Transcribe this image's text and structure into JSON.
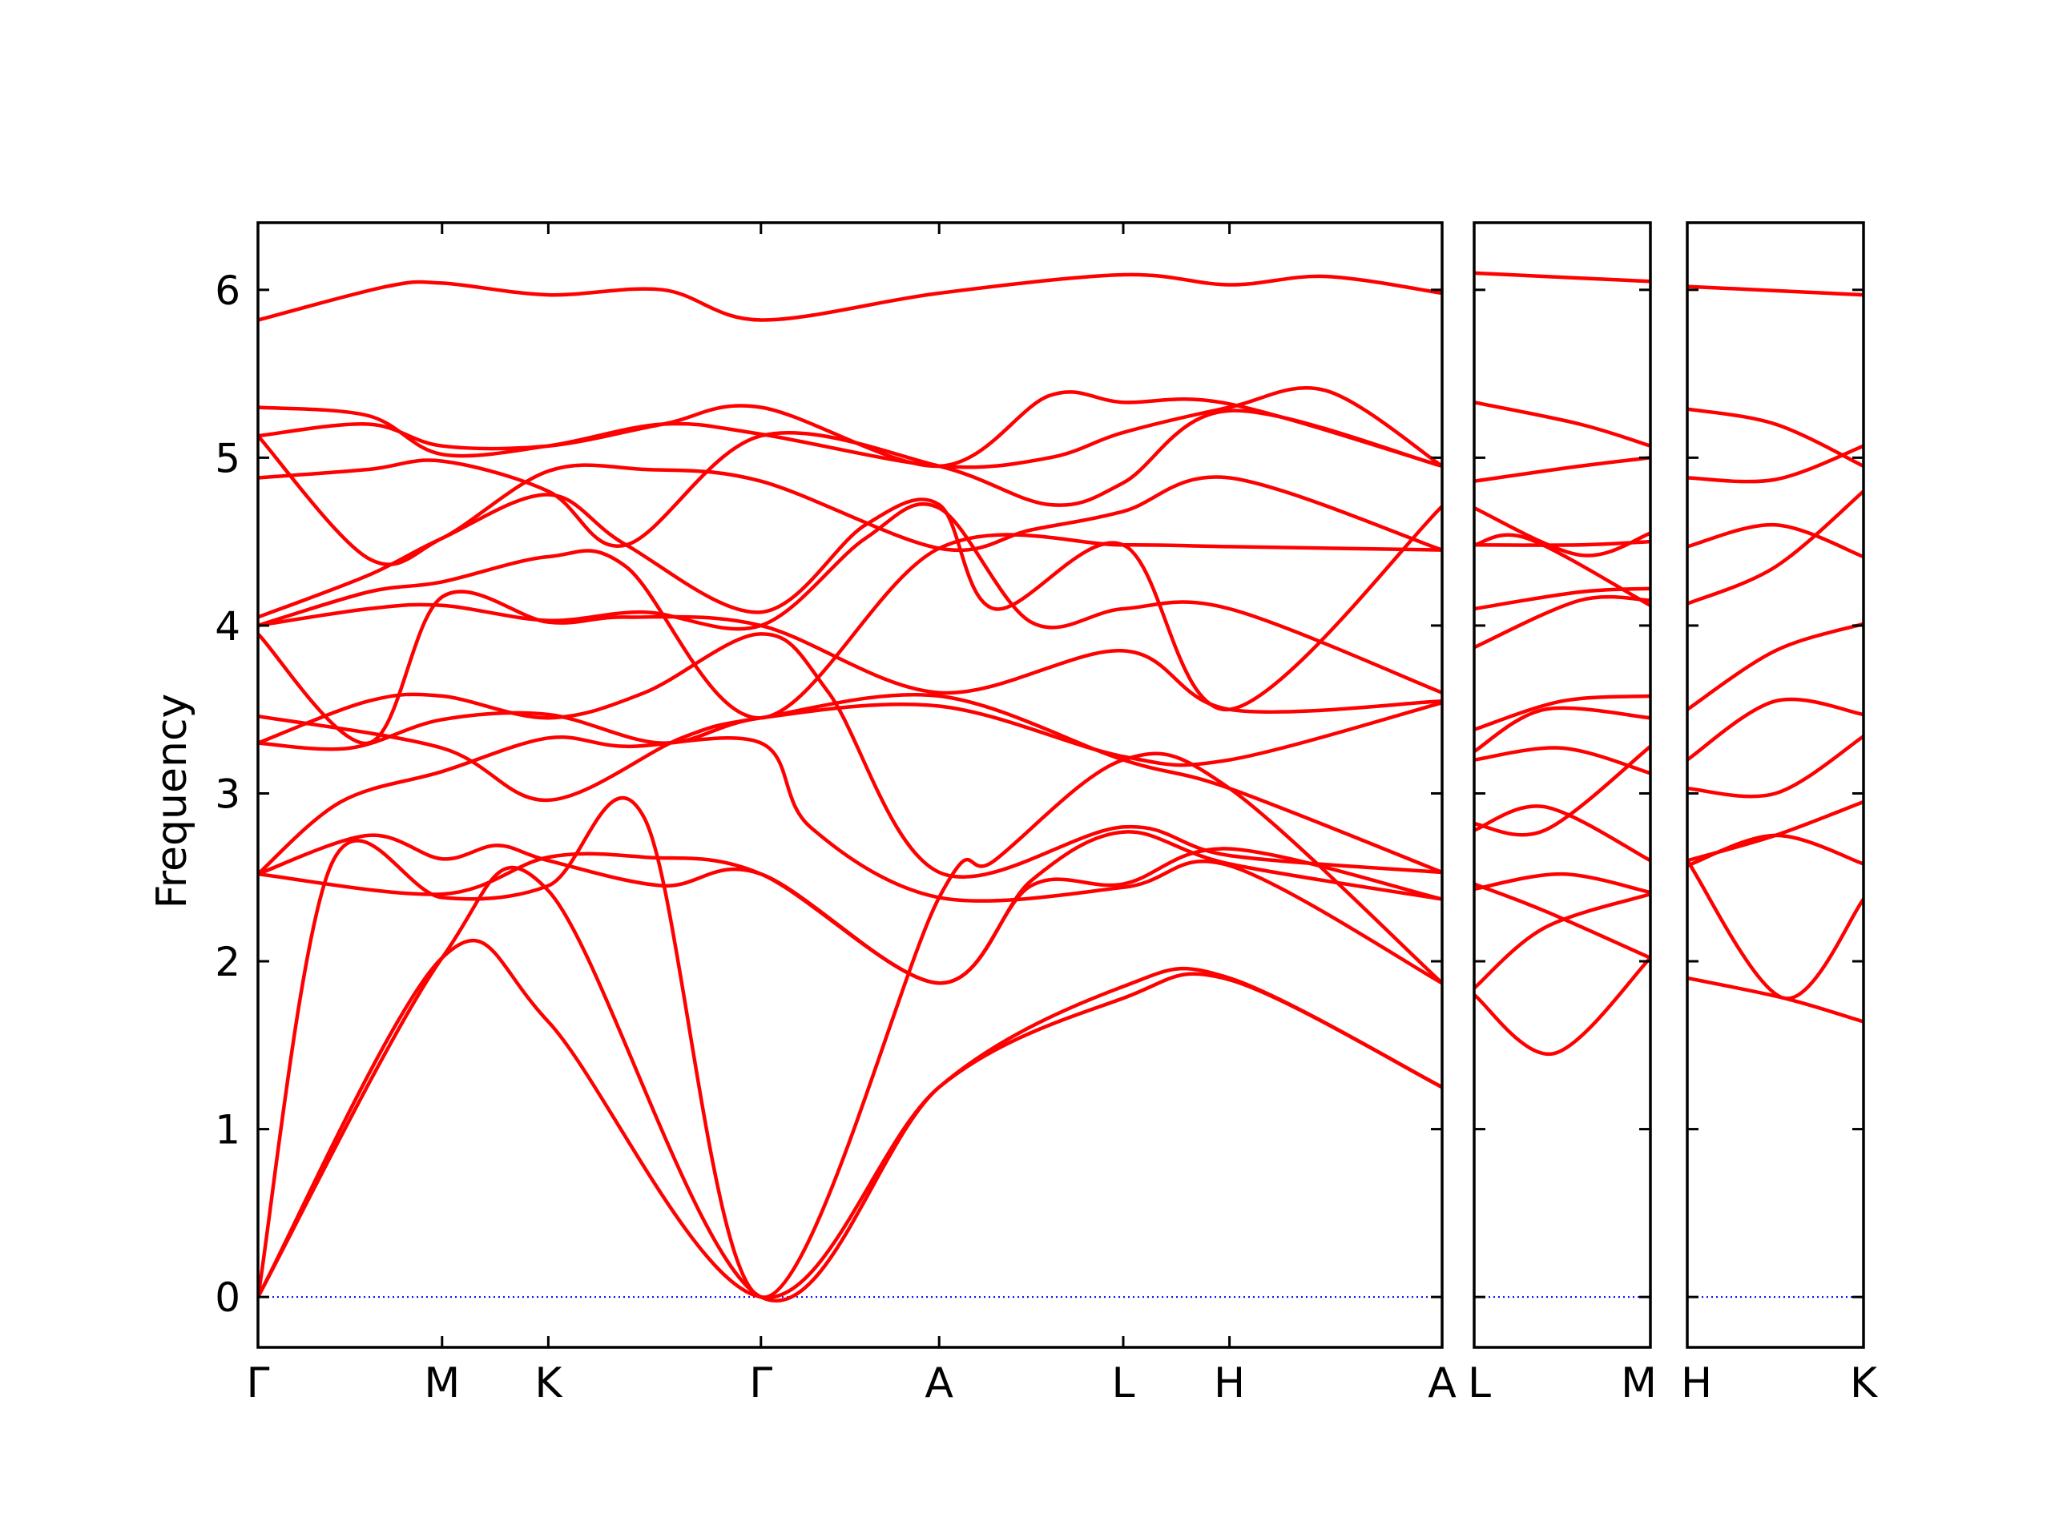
{
  "chart_data": {
    "type": "line",
    "title": "",
    "ylabel": "Frequency",
    "ylim": [
      -0.3,
      6.4
    ],
    "yticks": [
      0,
      1,
      2,
      3,
      4,
      5,
      6
    ],
    "ytick_labels": [
      "0",
      "1",
      "2",
      "3",
      "4",
      "5",
      "6"
    ],
    "grid": false,
    "legend": "none",
    "colors": {
      "bands": "#ff0000",
      "zero_line": "#0000ff",
      "axes": "#000000"
    },
    "panels": [
      {
        "labels": [
          "Γ",
          "M",
          "K",
          "Γ",
          "A",
          "L",
          "H",
          "A"
        ],
        "positions": [
          0,
          1,
          1.577,
          2.732,
          3.7,
          4.7,
          5.277,
          6.432
        ],
        "bands": [
          {
            "x": [
              0,
              1,
              1.577,
              2.732,
              3.7,
              4.7,
              5.277,
              6.432
            ],
            "y": [
              0,
              2.02,
              1.64,
              0,
              1.25,
              1.78,
              1.89,
              1.25
            ]
          },
          {
            "x": [
              0,
              1,
              1.577,
              2.732,
              3.7,
              4.7,
              5.277,
              6.432
            ],
            "y": [
              0,
              2.02,
              2.42,
              0,
              1.25,
              1.85,
              1.9,
              1.25
            ]
          },
          {
            "x": [
              0,
              0.4,
              1,
              1.577,
              2.1,
              2.732,
              3.7,
              4.0,
              4.7,
              5.277,
              6.432
            ],
            "y": [
              0,
              2.58,
              2.38,
              2.45,
              2.85,
              0,
              2.38,
              2.6,
              3.2,
              3.03,
              1.87
            ]
          },
          {
            "x": [
              0,
              1,
              1.577,
              2.1,
              2.732,
              3.7,
              4.2,
              4.7,
              5.277,
              6.432
            ],
            "y": [
              2.52,
              2.4,
              2.62,
              2.62,
              2.52,
              1.87,
              2.45,
              2.46,
              2.67,
              2.37
            ]
          },
          {
            "x": [
              0,
              0.6,
              1,
              1.3,
              1.577,
              2.2,
              2.732,
              3.7,
              4.2,
              4.7,
              5.277,
              6.432
            ],
            "y": [
              2.52,
              2.75,
              2.61,
              2.69,
              2.6,
              2.45,
              2.52,
              1.87,
              2.48,
              2.77,
              2.58,
              2.37
            ]
          },
          {
            "x": [
              0,
              0.45,
              1,
              1.577,
              2.0,
              2.732,
              3.0,
              3.7,
              4.7,
              5.277,
              6.432
            ],
            "y": [
              2.52,
              2.95,
              3.13,
              3.33,
              3.28,
              3.3,
              2.8,
              2.38,
              2.44,
              2.57,
              1.87
            ]
          },
          {
            "x": [
              0,
              0.5,
              1,
              1.577,
              2.2,
              2.732,
              3.7,
              4.7,
              5.277,
              6.432
            ],
            "y": [
              3.3,
              3.27,
              3.44,
              3.47,
              3.3,
              3.45,
              3.52,
              3.22,
              3.2,
              3.54
            ]
          },
          {
            "x": [
              0,
              1,
              1.577,
              2.3,
              2.732,
              3.7,
              4.7,
              5.277,
              6.432
            ],
            "y": [
              3.46,
              3.27,
              2.96,
              3.33,
              3.45,
              3.58,
              3.2,
              3.03,
              2.53
            ]
          },
          {
            "x": [
              0,
              0.6,
              1,
              1.577,
              2.1,
              2.732,
              3.1,
              3.7,
              4.7,
              5.277,
              6.432
            ],
            "y": [
              3.3,
              3.55,
              3.58,
              3.45,
              3.6,
              3.95,
              3.6,
              2.53,
              2.8,
              2.63,
              2.53
            ]
          },
          {
            "x": [
              0,
              0.6,
              1,
              1.577,
              2.0,
              2.732,
              3.7,
              4.7,
              5.277,
              6.432
            ],
            "y": [
              3.95,
              3.3,
              4.17,
              4.02,
              4.05,
              4.0,
              3.6,
              3.85,
              3.5,
              3.55
            ]
          },
          {
            "x": [
              0,
              0.6,
              1,
              1.577,
              2.1,
              2.732,
              3.3,
              3.7,
              4.2,
              4.7,
              5.277,
              6.432
            ],
            "y": [
              4.0,
              4.1,
              4.12,
              4.03,
              4.08,
              4.0,
              4.52,
              4.7,
              4.02,
              4.1,
              4.1,
              3.6
            ]
          },
          {
            "x": [
              0,
              0.6,
              1,
              1.577,
              2.0,
              2.732,
              3.7,
              4.7,
              5.277,
              6.432
            ],
            "y": [
              4.0,
              4.2,
              4.26,
              4.41,
              4.35,
              3.45,
              4.46,
              4.48,
              4.47,
              4.45
            ]
          },
          {
            "x": [
              0,
              0.6,
              1,
              1.577,
              2.0,
              2.732,
              3.3,
              3.7,
              4.0,
              4.7,
              5.277,
              6.432
            ],
            "y": [
              4.05,
              4.3,
              4.52,
              4.78,
              4.48,
              4.08,
              4.6,
              4.72,
              4.1,
              4.48,
              3.5,
              4.71
            ]
          },
          {
            "x": [
              0,
              0.6,
              1,
              1.577,
              2.1,
              2.732,
              3.7,
              4.2,
              4.7,
              5.277,
              6.432
            ],
            "y": [
              5.13,
              4.4,
              4.52,
              4.92,
              4.93,
              4.86,
              4.46,
              4.57,
              4.68,
              4.88,
              4.45
            ]
          },
          {
            "x": [
              0,
              0.6,
              1,
              1.577,
              2.0,
              2.732,
              3.7,
              4.3,
              4.7,
              5.277,
              6.432
            ],
            "y": [
              4.88,
              4.93,
              4.98,
              4.8,
              4.48,
              5.13,
              4.95,
              4.72,
              4.85,
              5.28,
              4.95
            ]
          },
          {
            "x": [
              0,
              0.6,
              1,
              1.577,
              2.2,
              2.732,
              3.7,
              4.3,
              4.7,
              5.277,
              6.432
            ],
            "y": [
              5.13,
              5.2,
              5.07,
              5.07,
              5.2,
              5.3,
              4.95,
              5.37,
              5.33,
              5.32,
              4.95
            ]
          },
          {
            "x": [
              0,
              0.6,
              1,
              1.577,
              2.2,
              2.732,
              3.7,
              4.3,
              4.7,
              5.277,
              5.8,
              6.432
            ],
            "y": [
              5.3,
              5.25,
              5.02,
              5.07,
              5.2,
              5.14,
              4.95,
              5.0,
              5.15,
              5.3,
              5.4,
              4.95
            ]
          },
          {
            "x": [
              0,
              0.7,
              1,
              1.577,
              2.2,
              2.732,
              3.7,
              4.7,
              5.277,
              5.8,
              6.432
            ],
            "y": [
              5.82,
              6.02,
              6.04,
              5.97,
              6.0,
              5.82,
              5.98,
              6.09,
              6.03,
              6.08,
              5.98
            ]
          }
        ]
      },
      {
        "labels": [
          "L",
          "M"
        ],
        "positions": [
          0,
          1
        ],
        "bands": [
          {
            "x": [
              0,
              0.45,
              1
            ],
            "y": [
              1.8,
              1.45,
              2.02
            ]
          },
          {
            "x": [
              0,
              0.4,
              1
            ],
            "y": [
              1.84,
              2.2,
              2.4
            ]
          },
          {
            "x": [
              0,
              0.5,
              1
            ],
            "y": [
              2.43,
              2.52,
              2.41
            ]
          },
          {
            "x": [
              0,
              0.4,
              1
            ],
            "y": [
              2.46,
              2.3,
              2.02
            ]
          },
          {
            "x": [
              0,
              0.4,
              1
            ],
            "y": [
              2.78,
              2.92,
              2.6
            ]
          },
          {
            "x": [
              0,
              0.4,
              1
            ],
            "y": [
              2.82,
              2.78,
              3.28
            ]
          },
          {
            "x": [
              0,
              0.5,
              1
            ],
            "y": [
              3.2,
              3.27,
              3.12
            ]
          },
          {
            "x": [
              0,
              0.4,
              1
            ],
            "y": [
              3.25,
              3.5,
              3.45
            ]
          },
          {
            "x": [
              0,
              0.5,
              1
            ],
            "y": [
              3.38,
              3.55,
              3.58
            ]
          },
          {
            "x": [
              0,
              0.6,
              1
            ],
            "y": [
              3.87,
              4.15,
              4.15
            ]
          },
          {
            "x": [
              0,
              0.6,
              1
            ],
            "y": [
              4.1,
              4.2,
              4.22
            ]
          },
          {
            "x": [
              0,
              0.6,
              1
            ],
            "y": [
              4.48,
              4.48,
              4.5
            ]
          },
          {
            "x": [
              0,
              0.3,
              1
            ],
            "y": [
              4.48,
              4.52,
              4.12
            ]
          },
          {
            "x": [
              0,
              0.6,
              1
            ],
            "y": [
              4.7,
              4.42,
              4.55
            ]
          },
          {
            "x": [
              0,
              0.6,
              1
            ],
            "y": [
              4.86,
              4.95,
              5.0
            ]
          },
          {
            "x": [
              0,
              0.6,
              1
            ],
            "y": [
              5.33,
              5.2,
              5.07
            ]
          },
          {
            "x": [
              0,
              1
            ],
            "y": [
              6.1,
              6.05
            ]
          }
        ]
      },
      {
        "labels": [
          "H",
          "K"
        ],
        "positions": [
          0,
          1
        ],
        "bands": [
          {
            "x": [
              0,
              0.55,
              1
            ],
            "y": [
              1.9,
              1.78,
              1.64
            ]
          },
          {
            "x": [
              0,
              0.55,
              1
            ],
            "y": [
              2.6,
              1.78,
              2.37
            ]
          },
          {
            "x": [
              0,
              0.5,
              1
            ],
            "y": [
              2.57,
              2.75,
              2.58
            ]
          },
          {
            "x": [
              0,
              0.5,
              1
            ],
            "y": [
              2.6,
              2.75,
              2.95
            ]
          },
          {
            "x": [
              0,
              0.5,
              1
            ],
            "y": [
              3.03,
              3.0,
              3.34
            ]
          },
          {
            "x": [
              0,
              0.5,
              1
            ],
            "y": [
              3.2,
              3.55,
              3.47
            ]
          },
          {
            "x": [
              0,
              0.5,
              1
            ],
            "y": [
              3.5,
              3.85,
              4.01
            ]
          },
          {
            "x": [
              0,
              0.5,
              1
            ],
            "y": [
              4.13,
              4.35,
              4.8
            ]
          },
          {
            "x": [
              0,
              0.5,
              1
            ],
            "y": [
              4.47,
              4.6,
              4.41
            ]
          },
          {
            "x": [
              0,
              0.5,
              1
            ],
            "y": [
              4.88,
              4.87,
              5.07
            ]
          },
          {
            "x": [
              0,
              0.5,
              1
            ],
            "y": [
              5.29,
              5.2,
              4.95
            ]
          },
          {
            "x": [
              0,
              1
            ],
            "y": [
              6.02,
              5.97
            ]
          }
        ]
      }
    ]
  }
}
